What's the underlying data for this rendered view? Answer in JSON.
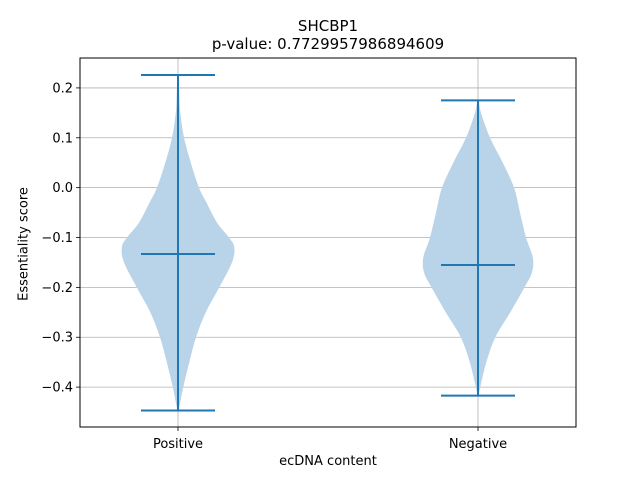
{
  "chart_data": {
    "type": "violin",
    "title": "SHCBP1",
    "subtitle": "p-value: 0.7729957986894609",
    "xlabel": "ecDNA content",
    "ylabel": "Essentiality score",
    "categories": [
      "Positive",
      "Negative"
    ],
    "ylim": [
      -0.48,
      0.26
    ],
    "yticks": [
      -0.4,
      -0.3,
      -0.2,
      -0.1,
      0.0,
      0.1,
      0.2
    ],
    "ytick_labels": [
      "−0.4",
      "−0.3",
      "−0.2",
      "−0.1",
      "0.0",
      "0.1",
      "0.2"
    ],
    "grid": true,
    "colors": {
      "body": "#b9d3e8",
      "line": "#1f77b4"
    },
    "series": [
      {
        "category": "Positive",
        "min": -0.447,
        "median": -0.133,
        "max": 0.226,
        "density_profile": [
          [
            -0.447,
            0.01
          ],
          [
            -0.43,
            0.03
          ],
          [
            -0.4,
            0.07
          ],
          [
            -0.35,
            0.15
          ],
          [
            -0.3,
            0.24
          ],
          [
            -0.25,
            0.37
          ],
          [
            -0.2,
            0.55
          ],
          [
            -0.15,
            0.72
          ],
          [
            -0.12,
            0.75
          ],
          [
            -0.1,
            0.68
          ],
          [
            -0.07,
            0.52
          ],
          [
            -0.03,
            0.38
          ],
          [
            0.0,
            0.28
          ],
          [
            0.05,
            0.17
          ],
          [
            0.1,
            0.08
          ],
          [
            0.15,
            0.03
          ],
          [
            0.2,
            0.015
          ],
          [
            0.226,
            0.01
          ]
        ]
      },
      {
        "category": "Negative",
        "min": -0.417,
        "median": -0.155,
        "max": 0.175,
        "density_profile": [
          [
            -0.417,
            0.01
          ],
          [
            -0.4,
            0.03
          ],
          [
            -0.35,
            0.11
          ],
          [
            -0.3,
            0.23
          ],
          [
            -0.25,
            0.43
          ],
          [
            -0.2,
            0.62
          ],
          [
            -0.17,
            0.72
          ],
          [
            -0.14,
            0.73
          ],
          [
            -0.1,
            0.64
          ],
          [
            -0.05,
            0.56
          ],
          [
            0.0,
            0.48
          ],
          [
            0.05,
            0.33
          ],
          [
            0.1,
            0.16
          ],
          [
            0.15,
            0.04
          ],
          [
            0.175,
            0.01
          ]
        ]
      }
    ]
  }
}
